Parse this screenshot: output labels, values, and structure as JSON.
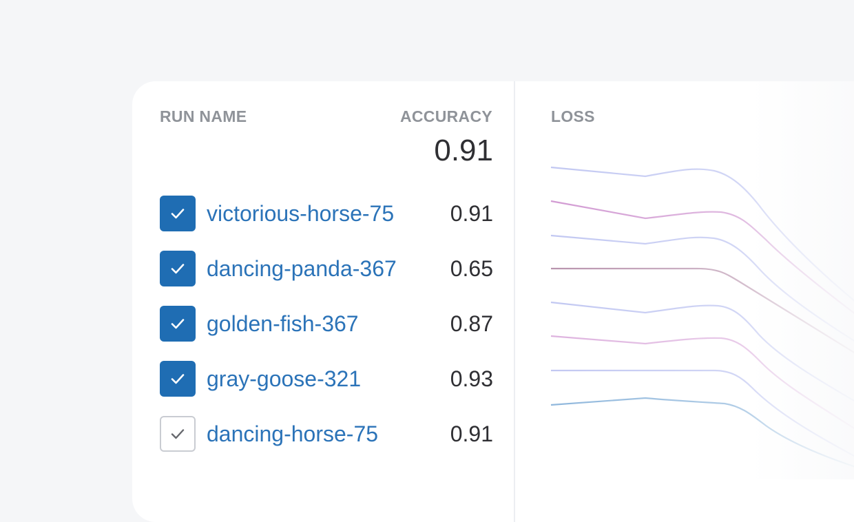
{
  "table": {
    "columns": {
      "run_name": "RUN NAME",
      "accuracy": "ACCURACY",
      "loss": "LOSS"
    },
    "summary_accuracy": "0.91",
    "rows": [
      {
        "name": "victorious-horse-75",
        "accuracy": "0.91",
        "checked": true
      },
      {
        "name": "dancing-panda-367",
        "accuracy": "0.65",
        "checked": true
      },
      {
        "name": "golden-fish-367",
        "accuracy": "0.87",
        "checked": true
      },
      {
        "name": "gray-goose-321",
        "accuracy": "0.93",
        "checked": true
      },
      {
        "name": "dancing-horse-75",
        "accuracy": "0.91",
        "checked": false
      }
    ]
  },
  "colors": {
    "checkbox_checked": "#1f6db3",
    "run_link": "#2b73b8",
    "loss_lines": [
      "#c2c8f2",
      "#d6a6d9",
      "#c2c8f2",
      "#b893ad",
      "#c2c8f2",
      "#deb3df",
      "#c2c8f2",
      "#8fb7dc"
    ]
  }
}
